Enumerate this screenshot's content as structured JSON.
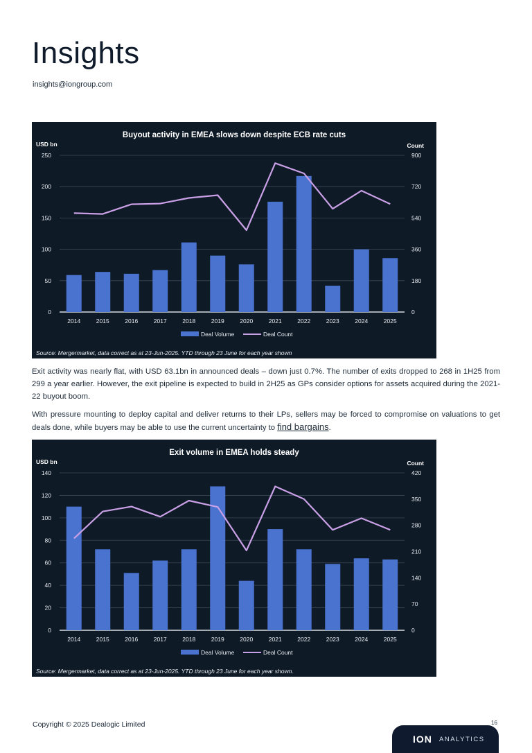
{
  "header": {
    "title": "Insights",
    "email": "insights@iongroup.com"
  },
  "charts": [
    {
      "title": "Buyout activity in EMEA slows down despite ECB rate cuts",
      "left_axis_label": "USD bn",
      "right_axis_label": "Count",
      "source": "Source: Mergermarket, data correct as at 23-Jun-2025. YTD through 23 June for each year shown"
    },
    {
      "title": "Exit volume in EMEA holds steady",
      "left_axis_label": "USD bn",
      "right_axis_label": "Count",
      "source": "Source: Mergermarket, data correct as at 23-Jun-2025. YTD through 23 June for each year shown."
    }
  ],
  "chart_data": [
    {
      "type": "bar",
      "title": "Buyout activity in EMEA slows down despite ECB rate cuts",
      "categories": [
        "2014",
        "2015",
        "2016",
        "2017",
        "2018",
        "2019",
        "2020",
        "2021",
        "2022",
        "2023",
        "2024",
        "2025"
      ],
      "series": [
        {
          "name": "Deal Volume",
          "type": "bar",
          "axis": "left",
          "values": [
            59,
            64,
            61,
            67,
            111,
            90,
            76,
            176,
            217,
            42,
            100,
            86
          ]
        },
        {
          "name": "Deal Count",
          "type": "line",
          "axis": "right",
          "values": [
            568,
            563,
            619,
            623,
            655,
            671,
            470,
            855,
            796,
            593,
            697,
            620
          ]
        }
      ],
      "ylabel": "USD bn",
      "y2label": "Count",
      "ylim": [
        0,
        250
      ],
      "yticks": [
        0,
        50,
        100,
        150,
        200,
        250
      ],
      "y2lim": [
        0,
        900
      ],
      "y2ticks": [
        0,
        180,
        360,
        540,
        720,
        900
      ],
      "colors": {
        "Deal Volume": "#4a72cf",
        "Deal Count": "#c9a0e6"
      },
      "grid": true,
      "legend": "bottom"
    },
    {
      "type": "bar",
      "title": "Exit volume in EMEA holds steady",
      "categories": [
        "2014",
        "2015",
        "2016",
        "2017",
        "2018",
        "2019",
        "2020",
        "2021",
        "2022",
        "2023",
        "2024",
        "2025"
      ],
      "series": [
        {
          "name": "Deal Volume",
          "type": "bar",
          "axis": "left",
          "values": [
            110,
            72,
            51,
            62,
            72,
            128,
            44,
            90,
            72,
            59,
            64,
            63
          ]
        },
        {
          "name": "Deal Count",
          "type": "line",
          "axis": "right",
          "values": [
            245,
            317,
            330,
            303,
            346,
            329,
            213,
            384,
            350,
            268,
            299,
            268
          ]
        }
      ],
      "ylabel": "USD bn",
      "y2label": "Count",
      "ylim": [
        0,
        140
      ],
      "yticks": [
        0,
        20,
        40,
        60,
        80,
        100,
        120,
        140
      ],
      "y2lim": [
        0,
        420
      ],
      "y2ticks": [
        0,
        70,
        140,
        210,
        280,
        350,
        420
      ],
      "colors": {
        "Deal Volume": "#4a72cf",
        "Deal Count": "#c9a0e6"
      },
      "grid": true,
      "legend": "bottom"
    }
  ],
  "body": {
    "paragraph1": "Exit activity was nearly flat, with USD 63.1bn in announced deals – down just 0.7%. The number of exits dropped to 268 in 1H25 from 299 a year earlier. However, the exit pipeline is expected to build in 2H25 as GPs consider options for assets acquired during the 2021-22 buyout boom.",
    "paragraph2_text": "With pressure mounting to deploy capital and deliver returns to their LPs, sellers may be forced to compromise on valuations to get deals done, while buyers may be able to use the current uncertainty to ",
    "paragraph2_link": "find bargains",
    "paragraph2_end": "."
  },
  "footer": {
    "copyright": "Copyright © 2025 Dealogic Limited",
    "page_number": "16",
    "logo_ion": "ION",
    "logo_analytics": "ANALYTICS"
  }
}
